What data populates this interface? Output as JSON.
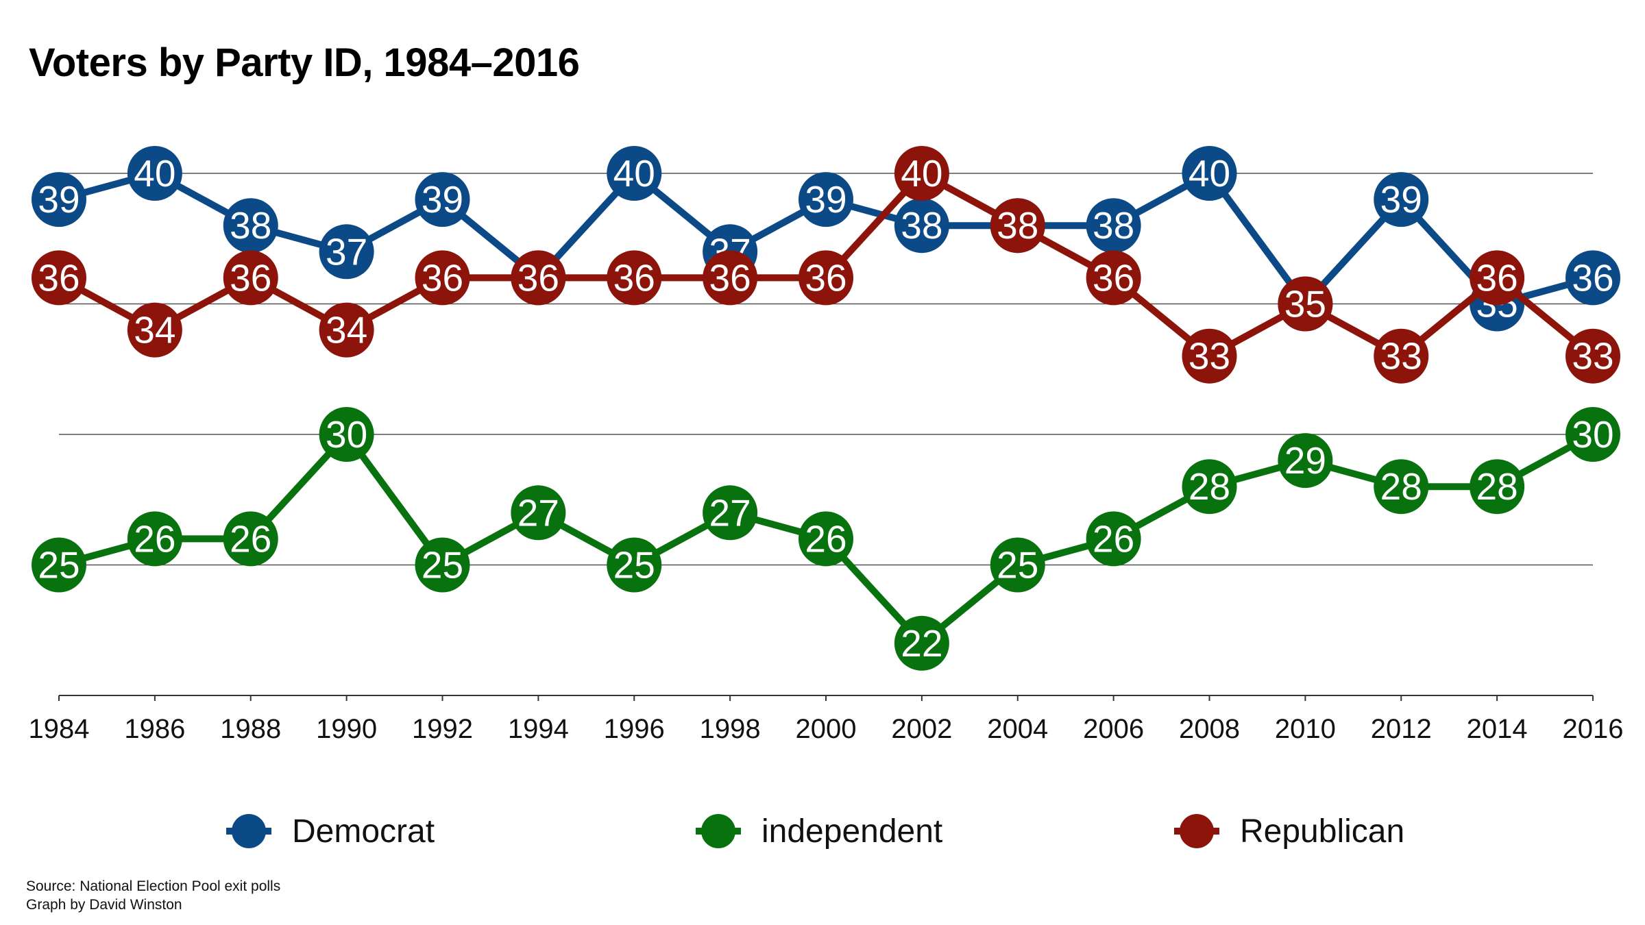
{
  "title": "Voters by Party ID, 1984–2016",
  "footer": {
    "source": "Source: National Election Pool exit polls",
    "credit": "Graph by David Winston"
  },
  "chart_data": {
    "type": "line",
    "title": "Voters by Party ID, 1984–2016",
    "xlabel": "",
    "ylabel": "",
    "x": [
      "1984",
      "1986",
      "1988",
      "1990",
      "1992",
      "1994",
      "1996",
      "1998",
      "2000",
      "2002",
      "2004",
      "2006",
      "2008",
      "2010",
      "2012",
      "2014",
      "2016"
    ],
    "ylim": [
      18,
      42
    ],
    "gridlines": [
      20,
      25,
      30,
      35,
      40
    ],
    "grid": true,
    "data_labels": true,
    "legend_position": "bottom",
    "series": [
      {
        "name": "Democrat",
        "color": "#0b4a86",
        "values": [
          39,
          40,
          38,
          37,
          39,
          36,
          40,
          37,
          39,
          38,
          38,
          38,
          40,
          35,
          39,
          35,
          36
        ]
      },
      {
        "name": "independent",
        "color": "#08720f",
        "values": [
          25,
          26,
          26,
          30,
          25,
          27,
          25,
          27,
          26,
          22,
          25,
          26,
          28,
          29,
          28,
          28,
          30
        ]
      },
      {
        "name": "Republican",
        "color": "#8c140b",
        "values": [
          36,
          34,
          36,
          34,
          36,
          36,
          36,
          36,
          36,
          40,
          38,
          36,
          33,
          35,
          33,
          36,
          33
        ]
      }
    ]
  }
}
